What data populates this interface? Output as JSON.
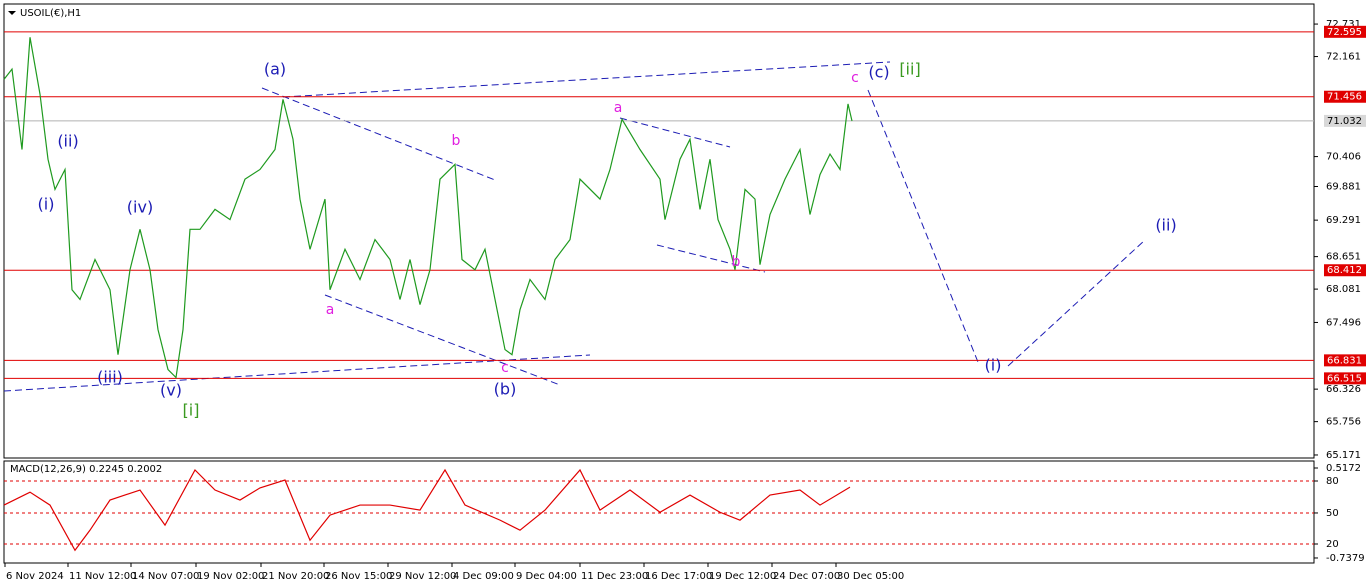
{
  "chart_data": [
    {
      "type": "line",
      "title": "USOIL(€),H1",
      "color": "#1f9a1f",
      "x": [
        0,
        8,
        18,
        26,
        36,
        44,
        51,
        61,
        68,
        76,
        91,
        106,
        114,
        126,
        136,
        146,
        154,
        164,
        172,
        179,
        186,
        196,
        211,
        226,
        241,
        256,
        271,
        279,
        289,
        296,
        306,
        321,
        326,
        341,
        356,
        371,
        386,
        396,
        406,
        416,
        426,
        436,
        451,
        458,
        471,
        481,
        491,
        501,
        508,
        516,
        526,
        541,
        551,
        566,
        576,
        596,
        606,
        618,
        636,
        656,
        661,
        676,
        686,
        696,
        706,
        714,
        726,
        731,
        741,
        751,
        756,
        766,
        781,
        796,
        806,
        816,
        826,
        836,
        844,
        848
      ],
      "values": [
        71.76,
        71.94,
        70.53,
        72.5,
        71.5,
        70.36,
        69.83,
        70.18,
        68.07,
        67.9,
        68.6,
        68.07,
        66.93,
        68.42,
        69.13,
        68.42,
        67.37,
        66.67,
        66.53,
        67.37,
        69.13,
        69.13,
        69.48,
        69.3,
        70.01,
        70.18,
        70.53,
        71.41,
        70.71,
        69.66,
        68.78,
        69.66,
        68.07,
        68.78,
        68.25,
        68.95,
        68.6,
        67.9,
        68.6,
        67.81,
        68.42,
        70.01,
        70.27,
        68.6,
        68.42,
        68.78,
        67.9,
        67.02,
        66.93,
        67.72,
        68.25,
        67.9,
        68.6,
        68.95,
        70.01,
        69.66,
        70.18,
        71.06,
        70.53,
        70.01,
        69.3,
        70.36,
        70.71,
        69.48,
        70.36,
        69.3,
        68.78,
        68.42,
        69.83,
        69.66,
        68.51,
        69.39,
        70.01,
        70.53,
        69.39,
        70.09,
        70.45,
        70.18,
        71.33,
        71.03
      ],
      "xlim": [
        0,
        1310
      ],
      "xticks": [
        {
          "value": 1,
          "label": "6 Nov 2024"
        },
        {
          "value": 64,
          "label": "11 Nov 12:00"
        },
        {
          "value": 127,
          "label": "14 Nov 07:00"
        },
        {
          "value": 192,
          "label": "19 Nov 02:00"
        },
        {
          "value": 257,
          "label": "21 Nov 20:00"
        },
        {
          "value": 320,
          "label": "26 Nov 15:00"
        },
        {
          "value": 384,
          "label": "29 Nov 12:00"
        },
        {
          "value": 448,
          "label": "4 Dec 09:00"
        },
        {
          "value": 511,
          "label": "9 Dec 04:00"
        },
        {
          "value": 576,
          "label": "11 Dec 23:00"
        },
        {
          "value": 640,
          "label": "16 Dec 17:00"
        },
        {
          "value": 704,
          "label": "19 Dec 12:00"
        },
        {
          "value": 768,
          "label": "24 Dec 07:00"
        },
        {
          "value": 832,
          "label": "30 Dec 05:00"
        }
      ],
      "ylim": [
        65.118,
        73.083
      ],
      "yticks": [
        72.731,
        72.161,
        70.406,
        69.881,
        69.291,
        68.651,
        68.081,
        67.496,
        66.326,
        65.756,
        65.171
      ],
      "levels": [
        72.595,
        71.456,
        68.412,
        66.831,
        66.515
      ],
      "level_color": "#e00000",
      "current_price": 71.032,
      "annotations": [
        {
          "text": "(a)",
          "color": "#1c1cb4"
        },
        {
          "text": "(ii)",
          "color": "#1c1cb4"
        },
        {
          "text": "(i)",
          "color": "#1c1cb4"
        },
        {
          "text": "(iv)",
          "color": "#1c1cb4"
        },
        {
          "text": "(iii)",
          "color": "#1c1cb4"
        },
        {
          "text": "(v)",
          "color": "#1c1cb4"
        },
        {
          "text": "[i]",
          "color": "#3a9a20"
        },
        {
          "text": "a",
          "color": "#e020e0"
        },
        {
          "text": "b",
          "color": "#e020e0"
        },
        {
          "text": "c",
          "color": "#e020e0"
        },
        {
          "text": "(b)",
          "color": "#1c1cb4"
        },
        {
          "text": "a",
          "color": "#e020e0"
        },
        {
          "text": "b",
          "color": "#e020e0"
        },
        {
          "text": "c",
          "color": "#e020e0"
        },
        {
          "text": "(c)",
          "color": "#1c1cb4"
        },
        {
          "text": "[ii]",
          "color": "#3a9a20"
        },
        {
          "text": "(i)",
          "color": "#1c1cb4"
        },
        {
          "text": "(ii)",
          "color": "#1c1cb4"
        }
      ]
    },
    {
      "type": "line",
      "title": "MACD(12,26,9) 0.2245 0.2002",
      "color": "#e00000",
      "x": [
        0,
        26,
        46,
        71,
        86,
        106,
        136,
        161,
        191,
        211,
        236,
        256,
        281,
        306,
        326,
        356,
        386,
        416,
        441,
        461,
        496,
        516,
        541,
        576,
        596,
        626,
        656,
        686,
        716,
        736,
        766,
        796,
        816,
        846
      ],
      "values": [
        0.0,
        0.18,
        0.0,
        -0.63,
        -0.35,
        0.07,
        0.21,
        -0.28,
        0.49,
        0.21,
        0.07,
        0.24,
        0.35,
        -0.49,
        -0.14,
        0.0,
        0.0,
        -0.07,
        0.49,
        0.0,
        -0.21,
        -0.35,
        -0.07,
        0.49,
        -0.07,
        0.21,
        -0.1,
        0.14,
        -0.1,
        -0.21,
        0.14,
        0.21,
        0.0,
        0.25
      ],
      "ylim": [
        -0.808,
        0.615
      ],
      "yticks": [
        0.5172,
        {
          "value": 0.336,
          "label": "80"
        },
        {
          "value": -0.11,
          "label": "50"
        },
        {
          "value": -0.543,
          "label": "20"
        },
        -0.7379
      ],
      "grid_color": "#e00000"
    }
  ]
}
